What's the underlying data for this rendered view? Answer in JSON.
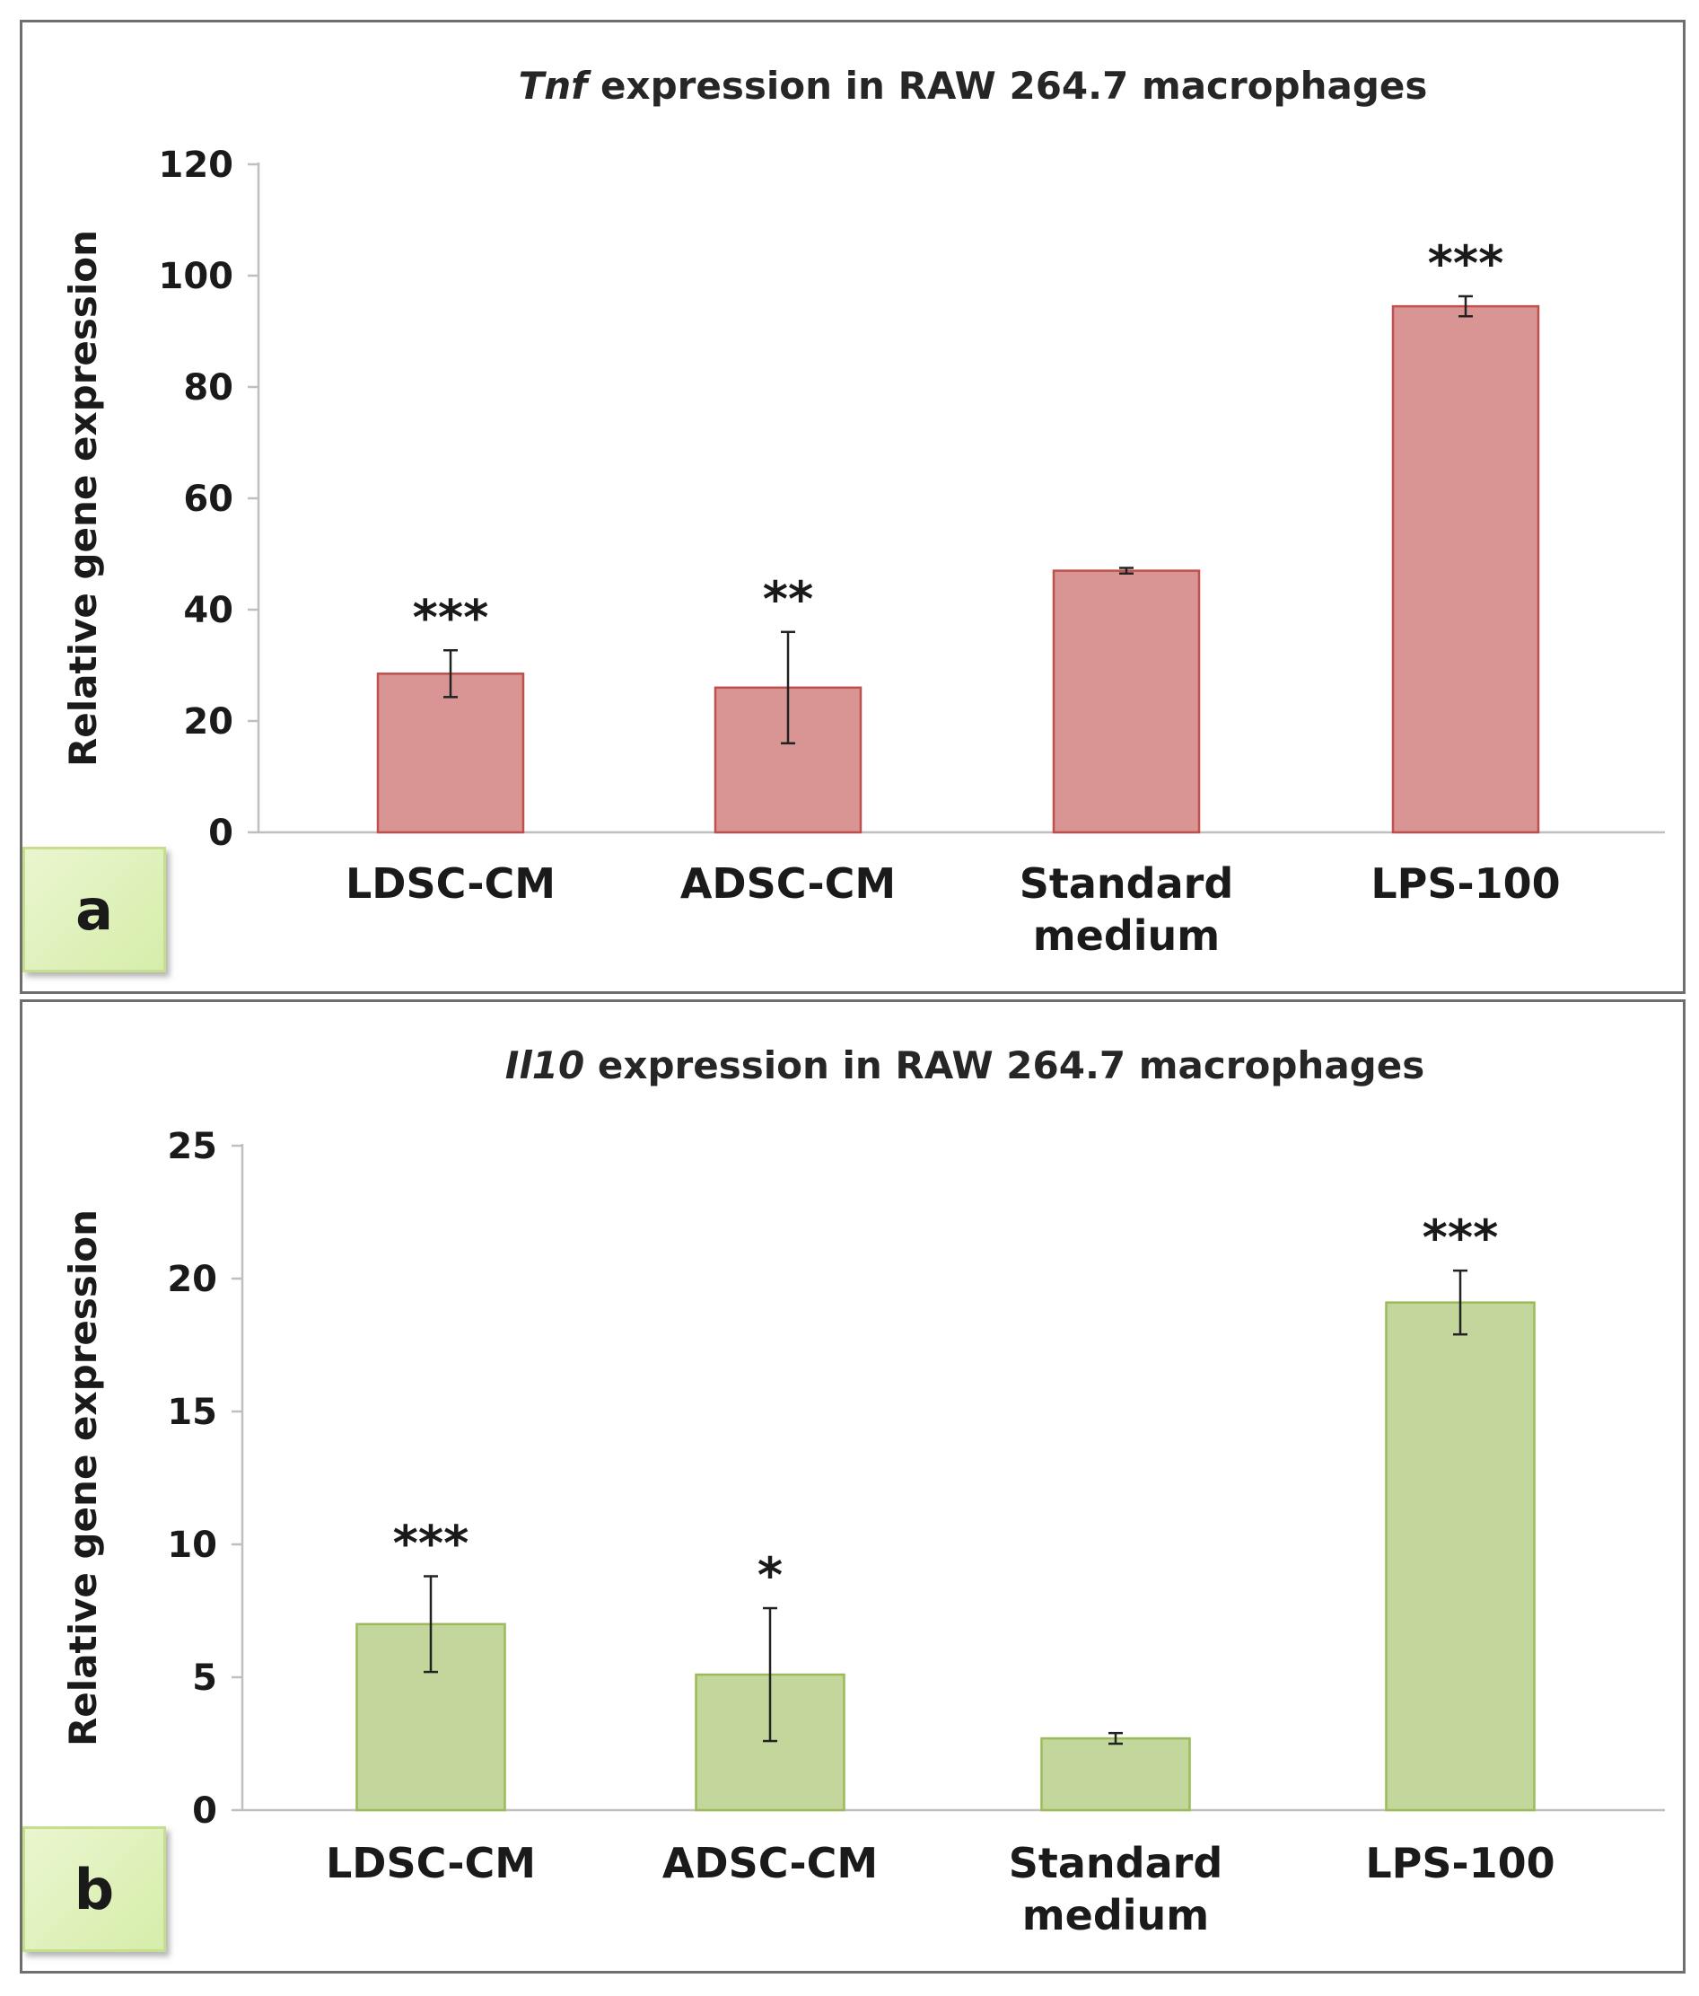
{
  "chart_data": [
    {
      "type": "bar",
      "panel_label": "a",
      "title_italic": "Tnf",
      "title_rest": " expression in RAW 264.7 macrophages",
      "ylabel": "Relative gene expression",
      "xlabel": "",
      "categories": [
        [
          "LDSC-CM"
        ],
        [
          "ADSC-CM"
        ],
        [
          "Standard",
          "medium"
        ],
        [
          "LPS-100"
        ]
      ],
      "values": [
        28.5,
        26,
        47,
        94.5
      ],
      "errors": [
        4.2,
        10,
        0.5,
        1.8
      ],
      "annotations": [
        "***",
        "**",
        "",
        "***"
      ],
      "ylim": [
        0,
        120
      ],
      "yticks": [
        0,
        20,
        40,
        60,
        80,
        100,
        120
      ],
      "bar_color": "#d99594",
      "bar_edge": "#c0504d"
    },
    {
      "type": "bar",
      "panel_label": "b",
      "title_italic": "Il10",
      "title_rest": " expression in RAW 264.7 macrophages",
      "ylabel": "Relative gene expression",
      "xlabel": "",
      "categories": [
        [
          "LDSC-CM"
        ],
        [
          "ADSC-CM"
        ],
        [
          "Standard",
          "medium"
        ],
        [
          "LPS-100"
        ]
      ],
      "values": [
        7,
        5.1,
        2.7,
        19.1
      ],
      "errors": [
        1.8,
        2.5,
        0.2,
        1.2
      ],
      "annotations": [
        "***",
        "*",
        "",
        "***"
      ],
      "ylim": [
        0,
        25
      ],
      "yticks": [
        0,
        5,
        10,
        15,
        20,
        25
      ],
      "bar_color": "#c3d69b",
      "bar_edge": "#9bbb59"
    }
  ]
}
